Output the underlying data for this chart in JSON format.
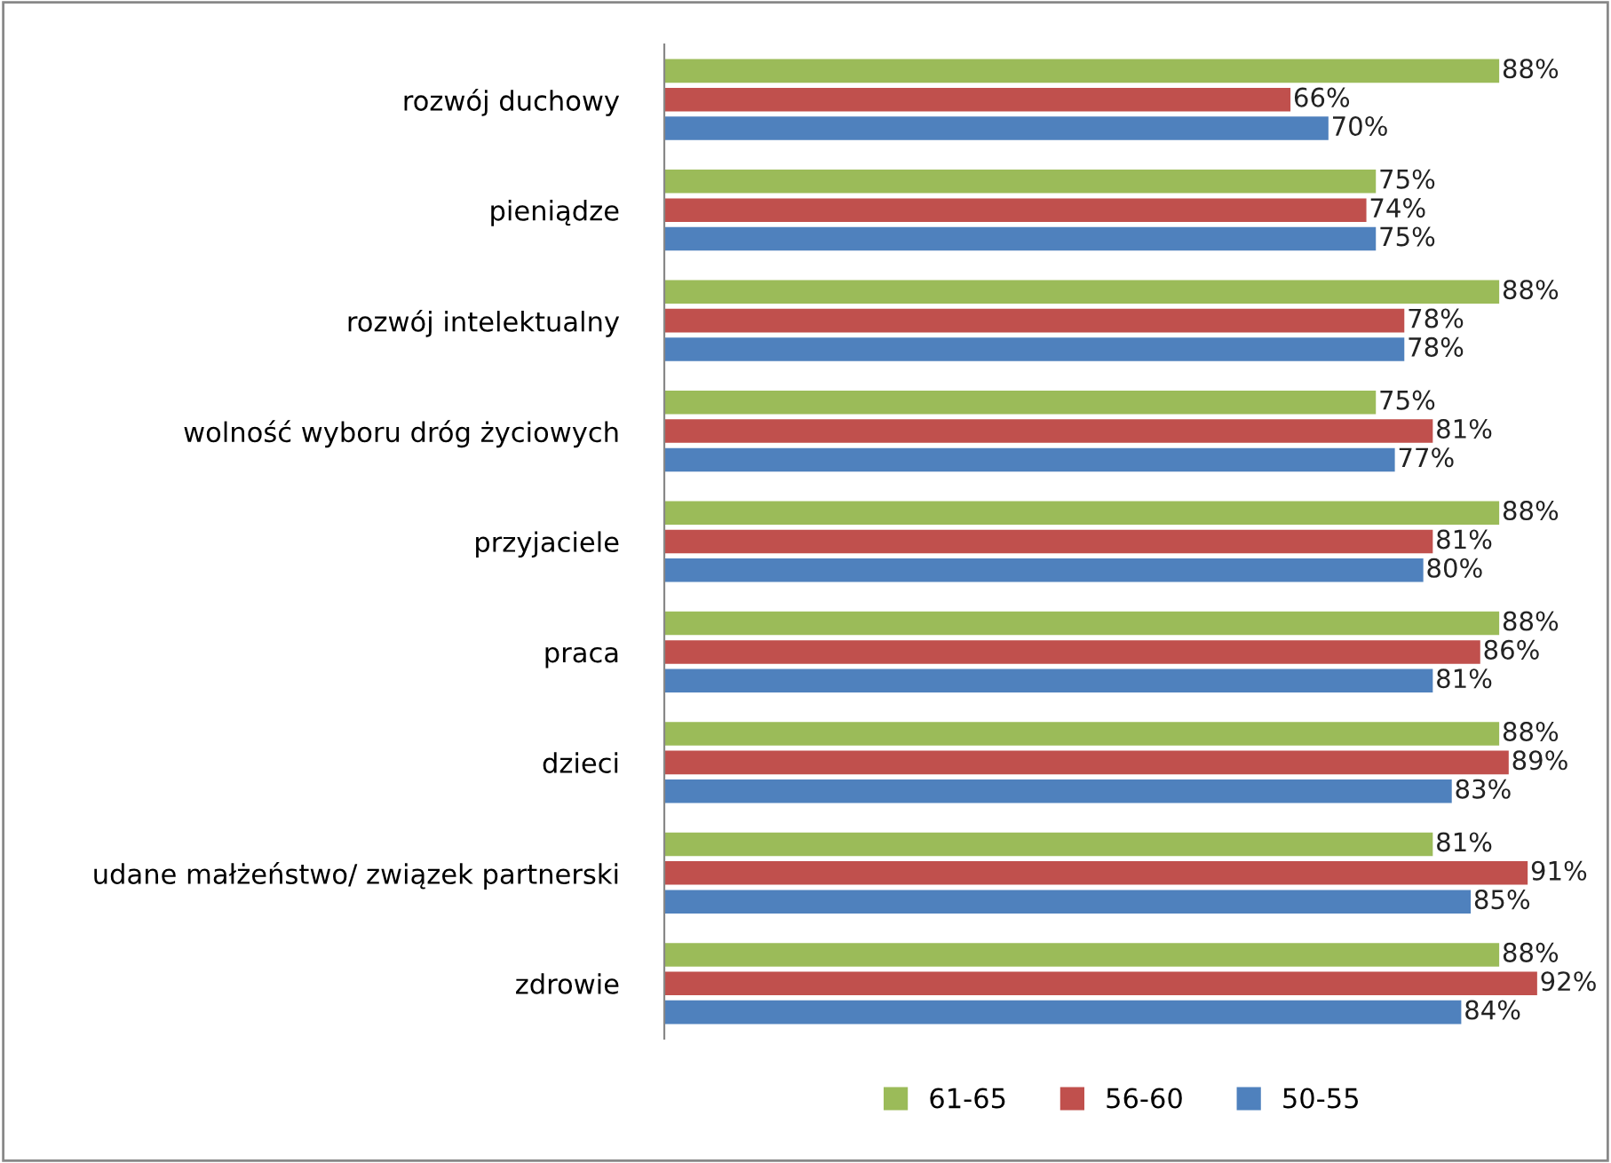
{
  "chart_data": {
    "type": "bar",
    "orientation": "horizontal",
    "categories": [
      "rozwój duchowy",
      "pieniądze",
      "rozwój intelektualny",
      "wolność wyboru dróg życiowych",
      "przyjaciele",
      "praca",
      "dzieci",
      "udane małżeństwo/ związek partnerski",
      "zdrowie"
    ],
    "series": [
      {
        "name": "61-65",
        "color": "#9bbb59",
        "values": [
          88,
          75,
          88,
          75,
          88,
          88,
          88,
          81,
          88
        ],
        "value_labels": [
          "88%",
          "75%",
          "88%",
          "75%",
          "88%",
          "88%",
          "88%",
          "81%",
          "88%"
        ]
      },
      {
        "name": "56-60",
        "color": "#c0504d",
        "values": [
          66,
          74,
          78,
          81,
          81,
          86,
          89,
          91,
          92
        ],
        "value_labels": [
          "66%",
          "74%",
          "78%",
          "81%",
          "81%",
          "86%",
          "89%",
          "91%",
          "92%"
        ]
      },
      {
        "name": "50-55",
        "color": "#4f81bd",
        "values": [
          70,
          75,
          78,
          77,
          80,
          81,
          83,
          85,
          84
        ],
        "value_labels": [
          "70%",
          "75%",
          "78%",
          "77%",
          "80%",
          "81%",
          "83%",
          "85%",
          "84%"
        ]
      }
    ],
    "tick_labels": "y",
    "legend": "bottom",
    "grid": false
  }
}
